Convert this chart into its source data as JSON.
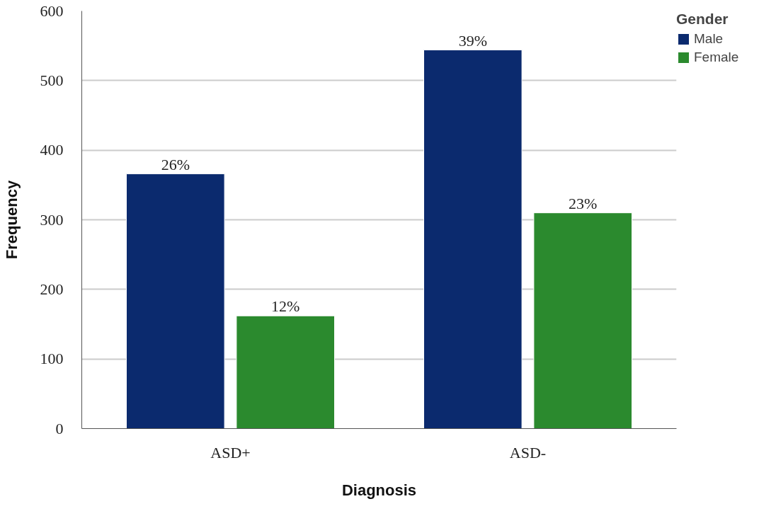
{
  "chart_data": {
    "type": "bar",
    "xlabel": "Diagnosis",
    "ylabel": "Frequency",
    "legend_title": "Gender",
    "categories": [
      "ASD+",
      "ASD-"
    ],
    "series": [
      {
        "name": "Male",
        "color": "#0b2a6e",
        "values": [
          366,
          544
        ]
      },
      {
        "name": "Female",
        "color": "#2b8a2e",
        "values": [
          162,
          310
        ]
      }
    ],
    "annotations": [
      "26%",
      "12%",
      "39%",
      "23%"
    ],
    "ylim": [
      0,
      600
    ],
    "yticks": [
      0,
      100,
      200,
      300,
      400,
      500,
      600
    ],
    "grid": "y",
    "legend": "top right"
  }
}
